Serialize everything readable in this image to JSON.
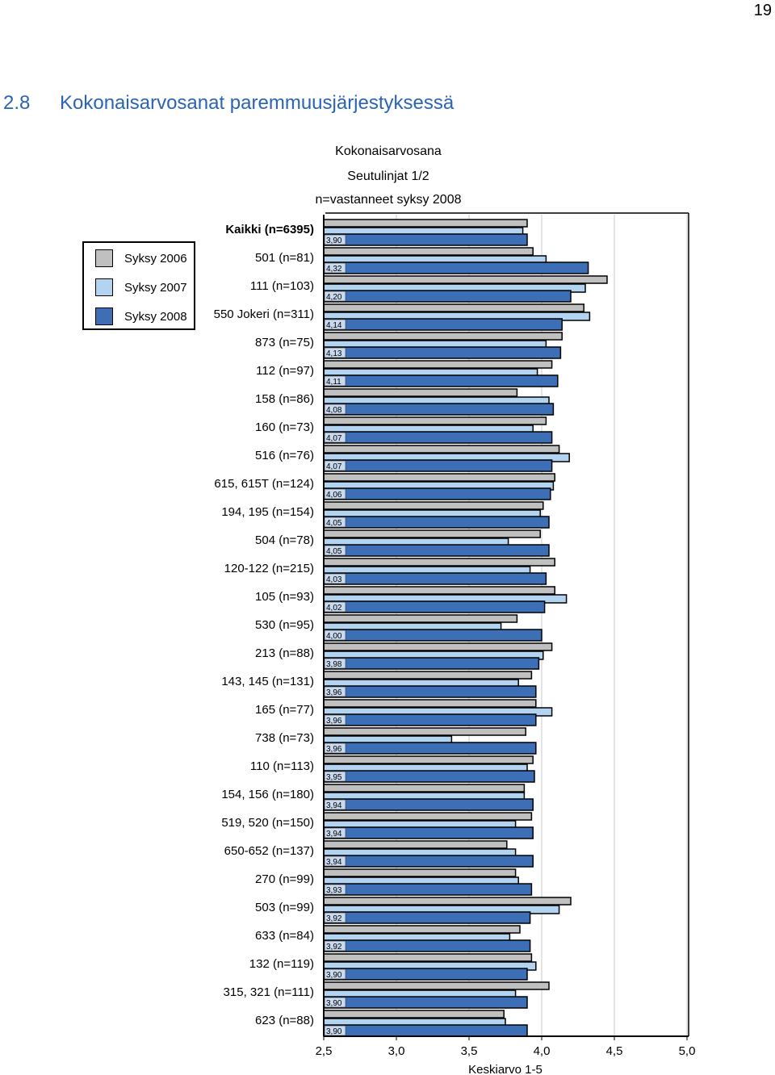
{
  "page": {
    "number": "19"
  },
  "heading": {
    "number": "2.8",
    "text": "Kokonaisarvosanat paremmuusjärjestyksessä"
  },
  "colors": {
    "heading": "#2a64b5"
  },
  "chart_data": {
    "type": "bar",
    "orientation": "horizontal",
    "title": "Kokonaisarvosana",
    "subtitle": "Seutulinjat 1/2",
    "subtitle2": "n=vastanneet syksy 2008",
    "xlabel": "Keskiarvo 1-5",
    "xlim": [
      2.5,
      5.0
    ],
    "xticks": [
      "2,5",
      "3,0",
      "3,5",
      "4,0",
      "4,5",
      "5,0"
    ],
    "grid": "vertical",
    "legend": "left",
    "categories": [
      "Kaikki (n=6395)",
      "501 (n=81)",
      "111 (n=103)",
      "550 Jokeri (n=311)",
      "873 (n=75)",
      "112 (n=97)",
      "158 (n=86)",
      "160 (n=73)",
      "516 (n=76)",
      "615, 615T (n=124)",
      "194, 195 (n=154)",
      "504 (n=78)",
      "120-122 (n=215)",
      "105 (n=93)",
      "530 (n=95)",
      "213 (n=88)",
      "143, 145 (n=131)",
      "165 (n=77)",
      "738 (n=73)",
      "110 (n=113)",
      "154, 156 (n=180)",
      "519, 520 (n=150)",
      "650-652 (n=137)",
      "270 (n=99)",
      "503 (n=99)",
      "633 (n=84)",
      "132 (n=119)",
      "315, 321 (n=111)",
      "623 (n=88)"
    ],
    "series": [
      {
        "name": "Syksy 2006",
        "color": "#c0c0c0",
        "values": [
          3.9,
          3.94,
          4.45,
          4.29,
          4.14,
          4.07,
          3.83,
          4.03,
          4.12,
          4.09,
          4.01,
          3.99,
          4.09,
          4.09,
          3.83,
          4.07,
          3.93,
          3.96,
          3.89,
          3.94,
          3.88,
          3.93,
          3.76,
          3.82,
          4.2,
          3.85,
          3.93,
          4.05,
          3.74
        ]
      },
      {
        "name": "Syksy 2007",
        "color": "#b3d4f0",
        "values": [
          3.87,
          4.03,
          4.3,
          4.33,
          4.03,
          3.97,
          4.05,
          3.94,
          4.19,
          4.08,
          3.99,
          3.77,
          3.92,
          4.17,
          3.72,
          4.01,
          3.84,
          4.07,
          3.38,
          3.9,
          3.88,
          3.82,
          3.82,
          3.84,
          4.12,
          3.78,
          3.96,
          3.82,
          3.75
        ]
      },
      {
        "name": "Syksy 2008",
        "color": "#3c6fb6",
        "values": [
          3.9,
          4.32,
          4.2,
          4.14,
          4.13,
          4.11,
          4.08,
          4.07,
          4.07,
          4.06,
          4.05,
          4.05,
          4.03,
          4.02,
          4.0,
          3.98,
          3.96,
          3.96,
          3.96,
          3.95,
          3.94,
          3.94,
          3.94,
          3.93,
          3.92,
          3.92,
          3.9,
          3.9,
          3.9
        ],
        "labels": [
          "3,90",
          "4,32",
          "4,20",
          "4,14",
          "4,13",
          "4,11",
          "4,08",
          "4,07",
          "4,07",
          "4,06",
          "4,05",
          "4,05",
          "4,03",
          "4,02",
          "4,00",
          "3,98",
          "3,96",
          "3,96",
          "3,96",
          "3,95",
          "3,94",
          "3,94",
          "3,94",
          "3,93",
          "3,92",
          "3,92",
          "3,90",
          "3,90",
          "3,90"
        ]
      }
    ]
  }
}
